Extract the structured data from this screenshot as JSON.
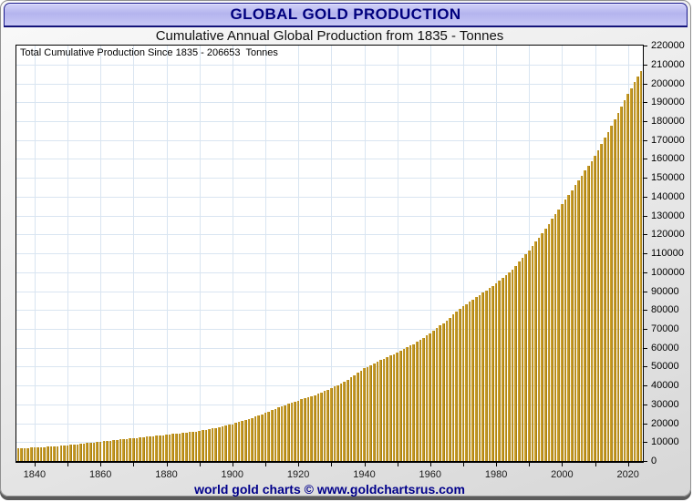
{
  "window": {
    "title": "GLOBAL GOLD PRODUCTION"
  },
  "subtitle": "Cumulative Annual Global Production from 1835 - Tonnes",
  "annotation": "Total Cumulative Production Since 1835 - 206653  Tonnes",
  "footer": "world gold charts © www.goldchartsrus.com",
  "colors": {
    "bar_light": "#d2a52e",
    "bar_mid": "#c2961f",
    "bar_dark": "#926f15",
    "grid": "#d9e5f1",
    "title_text": "#00007E",
    "footer_text": "#00008B",
    "titlebar_fill": "#b4b4ee",
    "frame_light": "#f9f9f9",
    "frame_dark": "#d7d7d7",
    "axis": "#000000"
  },
  "chart_data": {
    "type": "bar",
    "title": "GLOBAL GOLD PRODUCTION",
    "subtitle": "Cumulative Annual Global Production from 1835 - Tonnes",
    "annotation": "Total Cumulative Production Since 1835 - 206653  Tonnes",
    "total_cumulative_tonnes": 206653,
    "x_start": 1835,
    "x_end": 2024,
    "ylim": [
      0,
      220000
    ],
    "y_tick_step": 10000,
    "grid": true,
    "y_ticks": [
      0,
      10000,
      20000,
      30000,
      40000,
      50000,
      60000,
      70000,
      80000,
      90000,
      100000,
      110000,
      120000,
      130000,
      140000,
      150000,
      160000,
      170000,
      180000,
      190000,
      200000,
      210000,
      220000
    ],
    "x_ticks": [
      1840,
      1850,
      1860,
      1870,
      1880,
      1890,
      1900,
      1910,
      1920,
      1930,
      1940,
      1950,
      1960,
      1970,
      1980,
      1990,
      2000,
      2010,
      2020
    ],
    "x_labels": [
      1840,
      1860,
      1880,
      1900,
      1920,
      1940,
      1960,
      1980,
      2000,
      2020
    ],
    "values": [
      6600,
      6720,
      6840,
      6960,
      7080,
      7200,
      7280,
      7360,
      7440,
      7520,
      7600,
      7740,
      7880,
      8020,
      8160,
      8300,
      8500,
      8700,
      8900,
      9100,
      9300,
      9500,
      9700,
      9900,
      10100,
      10300,
      10480,
      10660,
      10840,
      11020,
      11200,
      11380,
      11560,
      11740,
      11920,
      12100,
      12280,
      12460,
      12640,
      12820,
      13000,
      13180,
      13360,
      13540,
      13720,
      13900,
      14080,
      14260,
      14440,
      14620,
      14800,
      15020,
      15240,
      15460,
      15680,
      15900,
      16220,
      16540,
      16860,
      17180,
      17500,
      17900,
      18300,
      18700,
      19100,
      19500,
      20060,
      20620,
      21180,
      21740,
      22300,
      22940,
      23580,
      24220,
      24860,
      25500,
      26200,
      26900,
      27600,
      28300,
      29000,
      29600,
      30200,
      30800,
      31400,
      32000,
      32600,
      33200,
      33800,
      34400,
      35000,
      35700,
      36400,
      37100,
      37800,
      38500,
      39400,
      40300,
      41200,
      42100,
      43000,
      44200,
      45400,
      46600,
      47800,
      49000,
      49900,
      50800,
      51700,
      52600,
      53500,
      54300,
      55100,
      55900,
      56700,
      57500,
      58400,
      59300,
      60200,
      61100,
      62000,
      63100,
      64200,
      65300,
      66400,
      67500,
      68900,
      70300,
      71700,
      73100,
      74500,
      76000,
      77500,
      79000,
      80500,
      82000,
      83200,
      84400,
      85600,
      86800,
      88000,
      89200,
      90400,
      91600,
      92800,
      94000,
      95500,
      97000,
      98500,
      100000,
      101500,
      103500,
      105500,
      107500,
      109500,
      111500,
      113800,
      116100,
      118400,
      120700,
      123000,
      125600,
      128200,
      130800,
      133400,
      136000,
      138500,
      141000,
      143500,
      146000,
      148500,
      151100,
      153700,
      156300,
      158900,
      161500,
      164700,
      167900,
      171100,
      174300,
      177500,
      180900,
      184300,
      187700,
      191100,
      194500,
      197550,
      200600,
      203650,
      206653
    ]
  }
}
